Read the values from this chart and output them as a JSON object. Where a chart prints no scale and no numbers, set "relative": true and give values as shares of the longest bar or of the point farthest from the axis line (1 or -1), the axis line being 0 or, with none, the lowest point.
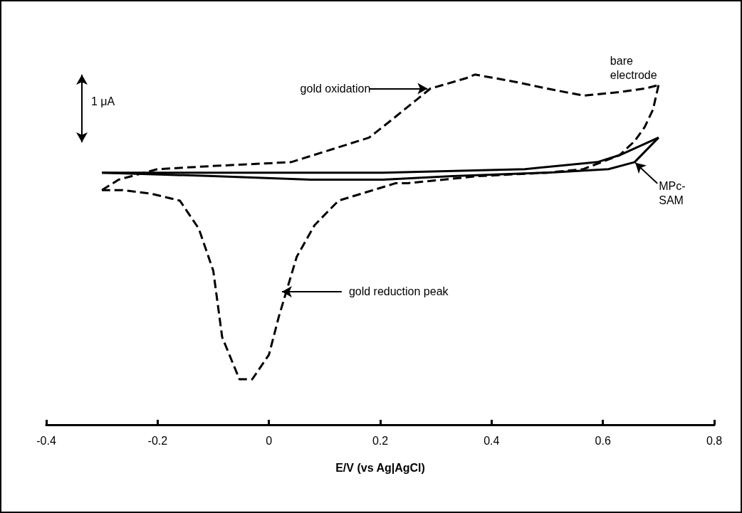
{
  "chart_data": {
    "type": "line",
    "relative": true,
    "xlabel": "E/V (vs Ag|AgCl)",
    "xlim": [
      -0.4,
      0.8
    ],
    "xticks": [
      -0.4,
      -0.2,
      0,
      0.2,
      0.4,
      0.6,
      0.8
    ],
    "grid": false,
    "legend": false,
    "marker": "none",
    "annotations": [
      {
        "text": "gold oxidation",
        "x": 0.29,
        "y": 0.96
      },
      {
        "text": "gold reduction peak",
        "x": 0.031,
        "y": 0.38
      },
      "1 μA"
    ],
    "series": [
      {
        "name": "bare electrode",
        "color": "#000000",
        "line_style": "dashed",
        "x": [
          -0.3,
          -0.27,
          -0.2,
          -0.088,
          0.04,
          0.1,
          0.18,
          0.22,
          0.29,
          0.355,
          0.37,
          0.44,
          0.5,
          0.565,
          0.63,
          0.675,
          0.7
        ],
        "values": [
          0.67,
          0.7,
          0.73,
          0.74,
          0.75,
          0.78,
          0.82,
          0.87,
          0.96,
          0.99,
          1,
          0.98,
          0.96,
          0.94,
          0.95,
          0.96,
          0.97
        ]
      },
      {
        "color": "#000000",
        "line_style": "dashed",
        "x": [
          0.7,
          0.69,
          0.675,
          0.657,
          0.63,
          0.565,
          0.5,
          0.376,
          0.25,
          0.228,
          0.125,
          0.082,
          0.05,
          0.018,
          0,
          -0.03,
          -0.053,
          -0.084,
          -0.1,
          -0.126,
          -0.16,
          -0.212,
          -0.263,
          -0.3
        ],
        "values": [
          0.97,
          0.9,
          0.85,
          0.81,
          0.77,
          0.73,
          0.72,
          0.71,
          0.69,
          0.69,
          0.64,
          0.57,
          0.48,
          0.31,
          0.2,
          0.13,
          0.13,
          0.25,
          0.44,
          0.56,
          0.64,
          0.66,
          0.67,
          0.67
        ]
      },
      {
        "name": "MPc-SAM",
        "color": "#000000",
        "line_style": "solid",
        "x": [
          -0.3,
          0,
          0.205,
          0.46,
          0.59,
          0.63,
          0.7
        ],
        "values": [
          0.72,
          0.72,
          0.72,
          0.73,
          0.75,
          0.77,
          0.82
        ]
      },
      {
        "color": "#000000",
        "line_style": "solid",
        "x": [
          0.7,
          0.657,
          0.61,
          0.5,
          0.33,
          0.205,
          0.075,
          -0.1,
          -0.3
        ],
        "values": [
          0.82,
          0.75,
          0.73,
          0.72,
          0.71,
          0.7,
          0.7,
          0.71,
          0.72
        ]
      }
    ]
  }
}
